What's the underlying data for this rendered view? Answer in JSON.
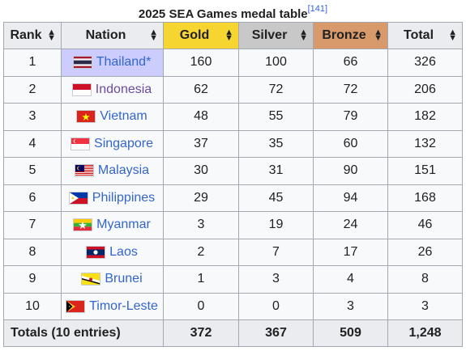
{
  "caption": {
    "title": "2025 SEA Games medal table",
    "ref": "[141]"
  },
  "headers": {
    "rank": "Rank",
    "nation": "Nation",
    "gold": "Gold",
    "silver": "Silver",
    "bronze": "Bronze",
    "total": "Total"
  },
  "colors": {
    "gold": "#f7d530",
    "silver": "#c8c8c8",
    "bronze": "#d89a6a",
    "host": "#ccccff",
    "link": "#3366cc"
  },
  "rows": [
    {
      "rank": "1",
      "nation": "Thailand*",
      "flag": "thailand-flag-icon",
      "gold": "160",
      "silver": "100",
      "bronze": "66",
      "total": "326"
    },
    {
      "rank": "2",
      "nation": "Indonesia",
      "flag": "indonesia-flag-icon",
      "gold": "62",
      "silver": "72",
      "bronze": "72",
      "total": "206"
    },
    {
      "rank": "3",
      "nation": "Vietnam",
      "flag": "vietnam-flag-icon",
      "gold": "48",
      "silver": "55",
      "bronze": "79",
      "total": "182"
    },
    {
      "rank": "4",
      "nation": "Singapore",
      "flag": "singapore-flag-icon",
      "gold": "37",
      "silver": "35",
      "bronze": "60",
      "total": "132"
    },
    {
      "rank": "5",
      "nation": "Malaysia",
      "flag": "malaysia-flag-icon",
      "gold": "30",
      "silver": "31",
      "bronze": "90",
      "total": "151"
    },
    {
      "rank": "6",
      "nation": "Philippines",
      "flag": "philippines-flag-icon",
      "gold": "29",
      "silver": "45",
      "bronze": "94",
      "total": "168"
    },
    {
      "rank": "7",
      "nation": "Myanmar",
      "flag": "myanmar-flag-icon",
      "gold": "3",
      "silver": "19",
      "bronze": "24",
      "total": "46"
    },
    {
      "rank": "8",
      "nation": "Laos",
      "flag": "laos-flag-icon",
      "gold": "2",
      "silver": "7",
      "bronze": "17",
      "total": "26"
    },
    {
      "rank": "9",
      "nation": "Brunei",
      "flag": "brunei-flag-icon",
      "gold": "1",
      "silver": "3",
      "bronze": "4",
      "total": "8"
    },
    {
      "rank": "10",
      "nation": "Timor-Leste",
      "flag": "timor-leste-flag-icon",
      "gold": "0",
      "silver": "0",
      "bronze": "3",
      "total": "3"
    }
  ],
  "totals": {
    "label": "Totals (10 entries)",
    "gold": "372",
    "silver": "367",
    "bronze": "509",
    "total": "1,248"
  }
}
